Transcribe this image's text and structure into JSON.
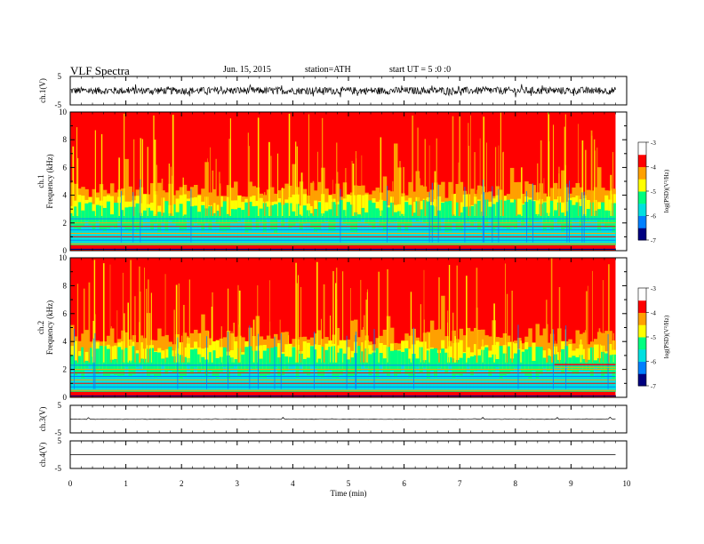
{
  "header": {
    "title": "VLF  Spectra",
    "date": "Jun. 15, 2015",
    "station": "station=ATH",
    "start": "start  UT  =   5  :0  :0"
  },
  "colors": {
    "sat": "#ff0000",
    "hi": "#ffa000",
    "mid_hi": "#ffff00",
    "mid": "#00ff80",
    "mid_lo": "#00e0e0",
    "lo": "#0080ff",
    "floor": "#000080"
  },
  "chart_data": [
    {
      "type": "line",
      "name": "waveform-ch1",
      "ylabel": "ch.1(V)",
      "ylim": [
        -5,
        5
      ],
      "ytick_labels": [
        "5",
        "-5"
      ],
      "description_level": "broadband noise, amplitude approx ±2 V"
    },
    {
      "type": "heatmap",
      "name": "spectrogram-ch1",
      "ylabel": "ch.1\nFrequency (kHz)",
      "ylabel_lines": [
        "ch.1",
        "Frequency (kHz)"
      ],
      "ylim": [
        0,
        10
      ],
      "ytick_labels": [
        "0",
        "2",
        "4",
        "6",
        "8",
        "10"
      ],
      "xlim": [
        0,
        10
      ],
      "data_end_min": 9.8,
      "colorbar": {
        "label": "log(PSD)(V²/Hz)",
        "ticks": [
          "-3",
          "-4",
          "-5",
          "-6",
          "-7"
        ],
        "range": [
          -7,
          -3
        ]
      }
    },
    {
      "type": "heatmap",
      "name": "spectrogram-ch2",
      "ylabel_lines": [
        "ch.2",
        "Frequency (kHz)"
      ],
      "ylim": [
        0,
        10
      ],
      "ytick_labels": [
        "0",
        "2",
        "4",
        "6",
        "8",
        "10"
      ],
      "xlim": [
        0,
        10
      ],
      "data_end_min": 9.8,
      "colorbar": {
        "label": "log(PSD)(V²/Hz)",
        "ticks": [
          "-3",
          "-4",
          "-5",
          "-6",
          "-7"
        ],
        "range": [
          -7,
          -3
        ]
      }
    },
    {
      "type": "line",
      "name": "waveform-ch3",
      "ylabel": "ch.3(V)",
      "ylim": [
        -5,
        5
      ],
      "ytick_labels": [
        "5",
        "-5"
      ]
    },
    {
      "type": "line",
      "name": "waveform-ch4",
      "ylabel": "ch.4(V)",
      "ylim": [
        -5,
        5
      ],
      "ytick_labels": [
        "5",
        "-5"
      ]
    }
  ],
  "xaxis": {
    "label": "Time  (min)",
    "ticks": [
      "0",
      "1",
      "2",
      "3",
      "4",
      "5",
      "6",
      "7",
      "8",
      "9",
      "10"
    ],
    "range": [
      0,
      10
    ]
  }
}
